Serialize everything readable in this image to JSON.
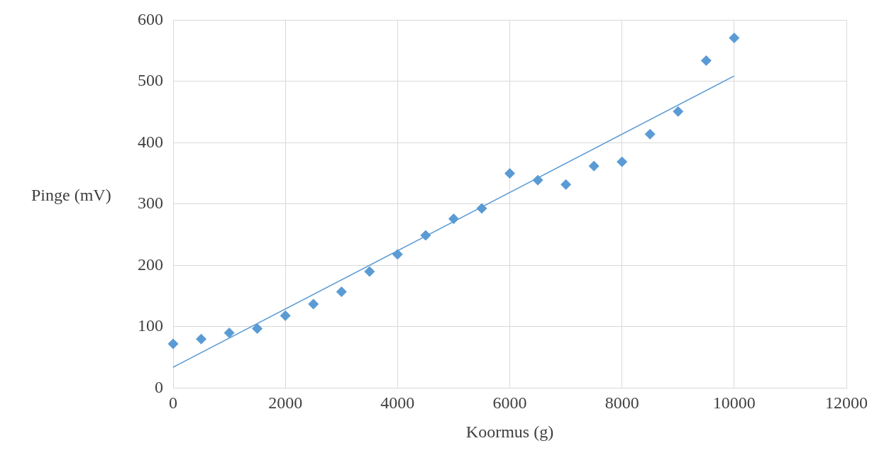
{
  "chart_data": {
    "type": "scatter",
    "xlabel": "Koormus (g)",
    "ylabel": "Pinge (mV)",
    "x": [
      0,
      500,
      1000,
      1500,
      2000,
      2500,
      3000,
      3500,
      4000,
      4500,
      5000,
      5500,
      6000,
      6500,
      7000,
      7500,
      8000,
      8500,
      9000,
      9500,
      10000
    ],
    "series": [
      {
        "type": "scatter",
        "color": "#5b9bd5",
        "marker": "diamond",
        "values": [
          72,
          80,
          90,
          97,
          118,
          137,
          157,
          190,
          218,
          249,
          276,
          293,
          350,
          339,
          332,
          362,
          369,
          414,
          451,
          534,
          571
        ]
      },
      {
        "type": "line",
        "color": "#5b9bd5",
        "marker": "none",
        "x": [
          0,
          10000
        ],
        "values": [
          34,
          509
        ]
      }
    ],
    "xlim": [
      0,
      12000
    ],
    "xticks": [
      0,
      2000,
      4000,
      6000,
      8000,
      10000,
      12000
    ],
    "ylim": [
      0,
      600
    ],
    "yticks": [
      0,
      100,
      200,
      300,
      400,
      500,
      600
    ],
    "grid": true,
    "legend": false
  }
}
